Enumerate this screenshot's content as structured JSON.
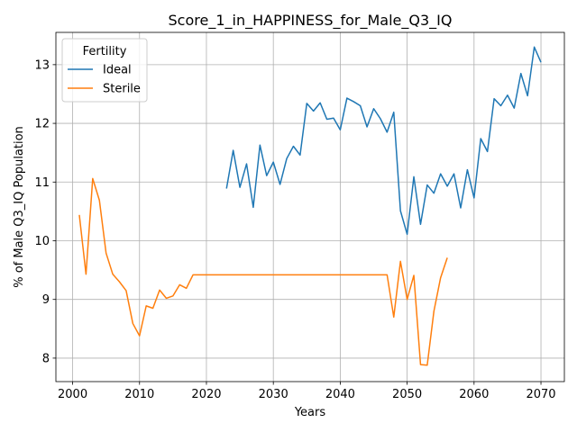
{
  "chart_data": {
    "type": "line",
    "title": "Score_1_in_HAPPINESS_for_Male_Q3_IQ",
    "xlabel": "Years",
    "ylabel": "% of Male Q3_IQ Population",
    "xlim": [
      1997.5,
      2073.5
    ],
    "ylim": [
      7.6,
      13.55
    ],
    "xticks": [
      2000,
      2010,
      2020,
      2030,
      2040,
      2050,
      2060,
      2070
    ],
    "yticks": [
      8,
      9,
      10,
      11,
      12,
      13
    ],
    "grid": true,
    "legend": {
      "title": "Fertility",
      "position": "top-left"
    },
    "series": [
      {
        "name": "Ideal",
        "color": "#1f77b4",
        "points": [
          [
            2023,
            10.89
          ],
          [
            2024,
            11.54
          ],
          [
            2025,
            10.91
          ],
          [
            2026,
            11.31
          ],
          [
            2027,
            10.57
          ],
          [
            2028,
            11.63
          ],
          [
            2029,
            11.11
          ],
          [
            2030,
            11.34
          ],
          [
            2031,
            10.96
          ],
          [
            2032,
            11.4
          ],
          [
            2033,
            11.61
          ],
          [
            2034,
            11.46
          ],
          [
            2035,
            12.34
          ],
          [
            2036,
            12.21
          ],
          [
            2037,
            12.35
          ],
          [
            2038,
            12.07
          ],
          [
            2039,
            12.09
          ],
          [
            2040,
            11.89
          ],
          [
            2041,
            12.43
          ],
          [
            2042,
            12.37
          ],
          [
            2043,
            12.3
          ],
          [
            2044,
            11.94
          ],
          [
            2045,
            12.25
          ],
          [
            2046,
            12.08
          ],
          [
            2047,
            11.85
          ],
          [
            2048,
            12.19
          ],
          [
            2049,
            10.51
          ],
          [
            2050,
            10.11
          ],
          [
            2051,
            11.09
          ],
          [
            2052,
            10.28
          ],
          [
            2053,
            10.95
          ],
          [
            2054,
            10.81
          ],
          [
            2055,
            11.14
          ],
          [
            2056,
            10.93
          ],
          [
            2057,
            11.14
          ],
          [
            2058,
            10.56
          ],
          [
            2059,
            11.21
          ],
          [
            2060,
            10.73
          ],
          [
            2061,
            11.74
          ],
          [
            2062,
            11.52
          ],
          [
            2063,
            12.42
          ],
          [
            2064,
            12.3
          ],
          [
            2065,
            12.48
          ],
          [
            2066,
            12.26
          ],
          [
            2067,
            12.85
          ],
          [
            2068,
            12.47
          ],
          [
            2069,
            13.3
          ],
          [
            2070,
            13.04
          ]
        ]
      },
      {
        "name": "Sterile",
        "color": "#ff7f0e",
        "points": [
          [
            2001,
            10.44
          ],
          [
            2002,
            9.43
          ],
          [
            2003,
            11.06
          ],
          [
            2004,
            10.69
          ],
          [
            2005,
            9.79
          ],
          [
            2006,
            9.43
          ],
          [
            2007,
            9.3
          ],
          [
            2008,
            9.15
          ],
          [
            2009,
            8.59
          ],
          [
            2010,
            8.38
          ],
          [
            2011,
            8.89
          ],
          [
            2012,
            8.85
          ],
          [
            2013,
            9.16
          ],
          [
            2014,
            9.02
          ],
          [
            2015,
            9.06
          ],
          [
            2016,
            9.25
          ],
          [
            2017,
            9.19
          ],
          [
            2018,
            9.42
          ],
          [
            2019,
            9.42
          ],
          [
            2020,
            9.42
          ],
          [
            2025,
            9.42
          ],
          [
            2030,
            9.42
          ],
          [
            2035,
            9.42
          ],
          [
            2040,
            9.42
          ],
          [
            2045,
            9.42
          ],
          [
            2047,
            9.42
          ],
          [
            2048,
            8.7
          ],
          [
            2049,
            9.65
          ],
          [
            2050,
            9.0
          ],
          [
            2051,
            9.41
          ],
          [
            2052,
            7.89
          ],
          [
            2053,
            7.88
          ],
          [
            2054,
            8.8
          ],
          [
            2055,
            9.37
          ],
          [
            2056,
            9.71
          ]
        ]
      }
    ]
  }
}
